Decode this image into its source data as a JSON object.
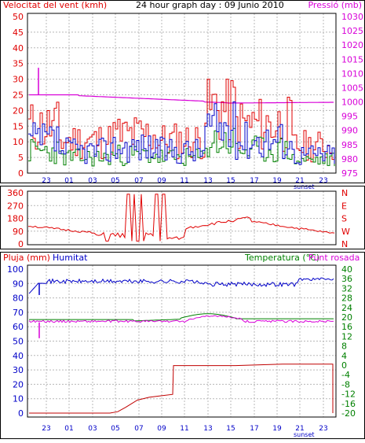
{
  "chart_data": [
    {
      "type": "line",
      "title": "24 hour graph day : 09 Junio 2010",
      "left_axis_label": "Velocitat del vent (kmh)",
      "right_axis_label": "Pressió (mb)",
      "left_ylim": [
        0,
        50
      ],
      "left_ticks": [
        "0",
        "5",
        "10",
        "15",
        "20",
        "25",
        "30",
        "35",
        "40",
        "45",
        "50"
      ],
      "right_ylim": [
        975,
        1030
      ],
      "right_ticks": [
        "975",
        "980",
        "985",
        "990",
        "995",
        "1000",
        "1005",
        "1010",
        "1015",
        "1020",
        "1025",
        "1030"
      ],
      "x_tick_labels": [
        "23",
        "01",
        "03",
        "05",
        "07",
        "09",
        "11",
        "13",
        "15",
        "17",
        "19",
        "21",
        "23"
      ],
      "x_annotation": "sunset",
      "grid": true,
      "colors": {
        "gust": "#e00000",
        "wind": "#0000c8",
        "speed_green": "#008000",
        "pressure": "#d800d8",
        "axis_left": "#e00000",
        "axis_right": "#d800d8"
      }
    },
    {
      "type": "line",
      "y_ticks_left": [
        "0",
        "90",
        "180",
        "270",
        "360"
      ],
      "right_axis_labels": [
        "N",
        "W",
        "S",
        "E",
        "N"
      ],
      "ylim": [
        0,
        360
      ],
      "series_color": "#e00000"
    },
    {
      "type": "line",
      "left_axis_label": "Pluja (mm)",
      "left_axis_label2": "Humitat",
      "right_axis_label": "Temperatura (°C)",
      "right_axis_label2": "Punt rosada",
      "left_ticks": [
        "0",
        "10",
        "20",
        "30",
        "40",
        "50",
        "60",
        "70",
        "80",
        "90",
        "100"
      ],
      "left_ylim": [
        0,
        100
      ],
      "right_ticks": [
        "-20",
        "-16",
        "-12",
        "-8",
        "-4",
        "0",
        "4",
        "8",
        "12",
        "16",
        "20",
        "24",
        "28",
        "32",
        "36",
        "40"
      ],
      "right_ylim": [
        -20,
        40
      ],
      "x_tick_labels": [
        "23",
        "01",
        "03",
        "05",
        "07",
        "09",
        "11",
        "13",
        "15",
        "17",
        "19",
        "21",
        "23"
      ],
      "x_annotation": "sunset",
      "colors": {
        "humidity": "#0000c8",
        "temperature": "#008000",
        "dewpoint": "#d800d8",
        "rain": "#c00000"
      }
    }
  ]
}
